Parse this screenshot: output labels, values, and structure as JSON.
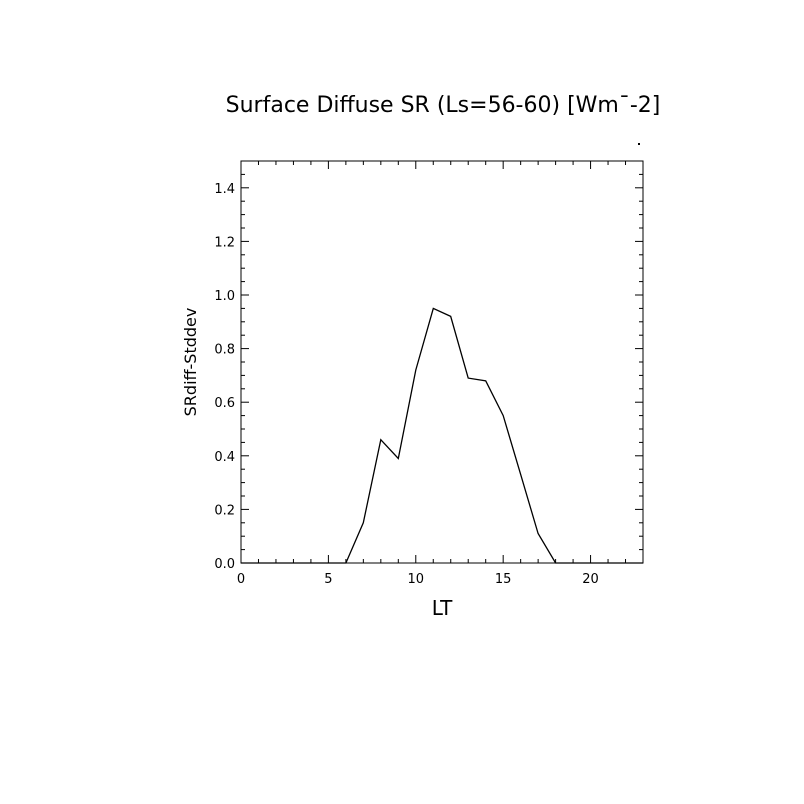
{
  "chart_data": {
    "type": "line",
    "title": "Surface Diffuse SR (Ls=56-60) [Wm¯-2]",
    "xlabel": "LT",
    "ylabel": "SRdiff-Stddev",
    "xlim": [
      0,
      23
    ],
    "ylim": [
      0,
      1.5
    ],
    "x_ticks": [
      0,
      5,
      10,
      15,
      20
    ],
    "x_tick_labels": [
      "0",
      "5",
      "10",
      "15",
      "20"
    ],
    "y_ticks": [
      0,
      0.2,
      0.4,
      0.6,
      0.8,
      1.0,
      1.2,
      1.4
    ],
    "y_tick_labels": [
      "0.0",
      "0.2",
      "0.4",
      "0.6",
      "0.8",
      "1.0",
      "1.2",
      "1.4"
    ],
    "grid": false,
    "line_color": "#000000",
    "series": [
      {
        "x": [
          0,
          1,
          2,
          3,
          4,
          5,
          6,
          7,
          8,
          9,
          10,
          11,
          12,
          13,
          14,
          15,
          16,
          17,
          18,
          19,
          20,
          21,
          22,
          23
        ],
        "values": [
          0,
          0,
          0,
          0,
          0,
          0,
          0,
          0.15,
          0.46,
          0.39,
          0.72,
          0.95,
          0.92,
          0.69,
          0.68,
          0.55,
          0.33,
          0.11,
          0,
          0,
          0,
          0,
          0,
          0
        ]
      }
    ]
  }
}
